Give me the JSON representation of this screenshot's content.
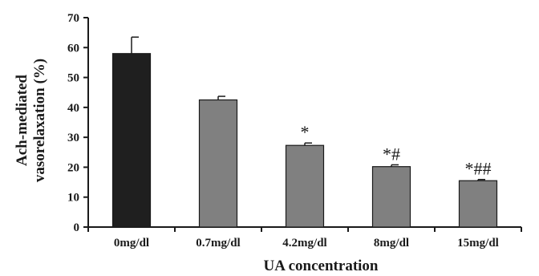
{
  "chart_data": {
    "type": "bar",
    "title": "",
    "xlabel": "UA concentration",
    "ylabel_lines": [
      "Ach-mediated",
      "vasorelaxation (%)"
    ],
    "categories": [
      "0mg/dl",
      "0.7mg/dl",
      "4.2mg/dl",
      "8mg/dl",
      "15mg/dl"
    ],
    "values": [
      58,
      42.5,
      27.3,
      20.2,
      15.5
    ],
    "errors": [
      5.5,
      1.2,
      0.8,
      0.6,
      0.4
    ],
    "annotations": [
      "",
      "",
      "*",
      "*#",
      "*##"
    ],
    "bar_colors": [
      "#1f1f1f",
      "#808080",
      "#808080",
      "#808080",
      "#808080"
    ],
    "ylim": [
      0,
      70
    ],
    "yticks": [
      0,
      10,
      20,
      30,
      40,
      50,
      60,
      70
    ],
    "grid": false,
    "legend": "none"
  }
}
